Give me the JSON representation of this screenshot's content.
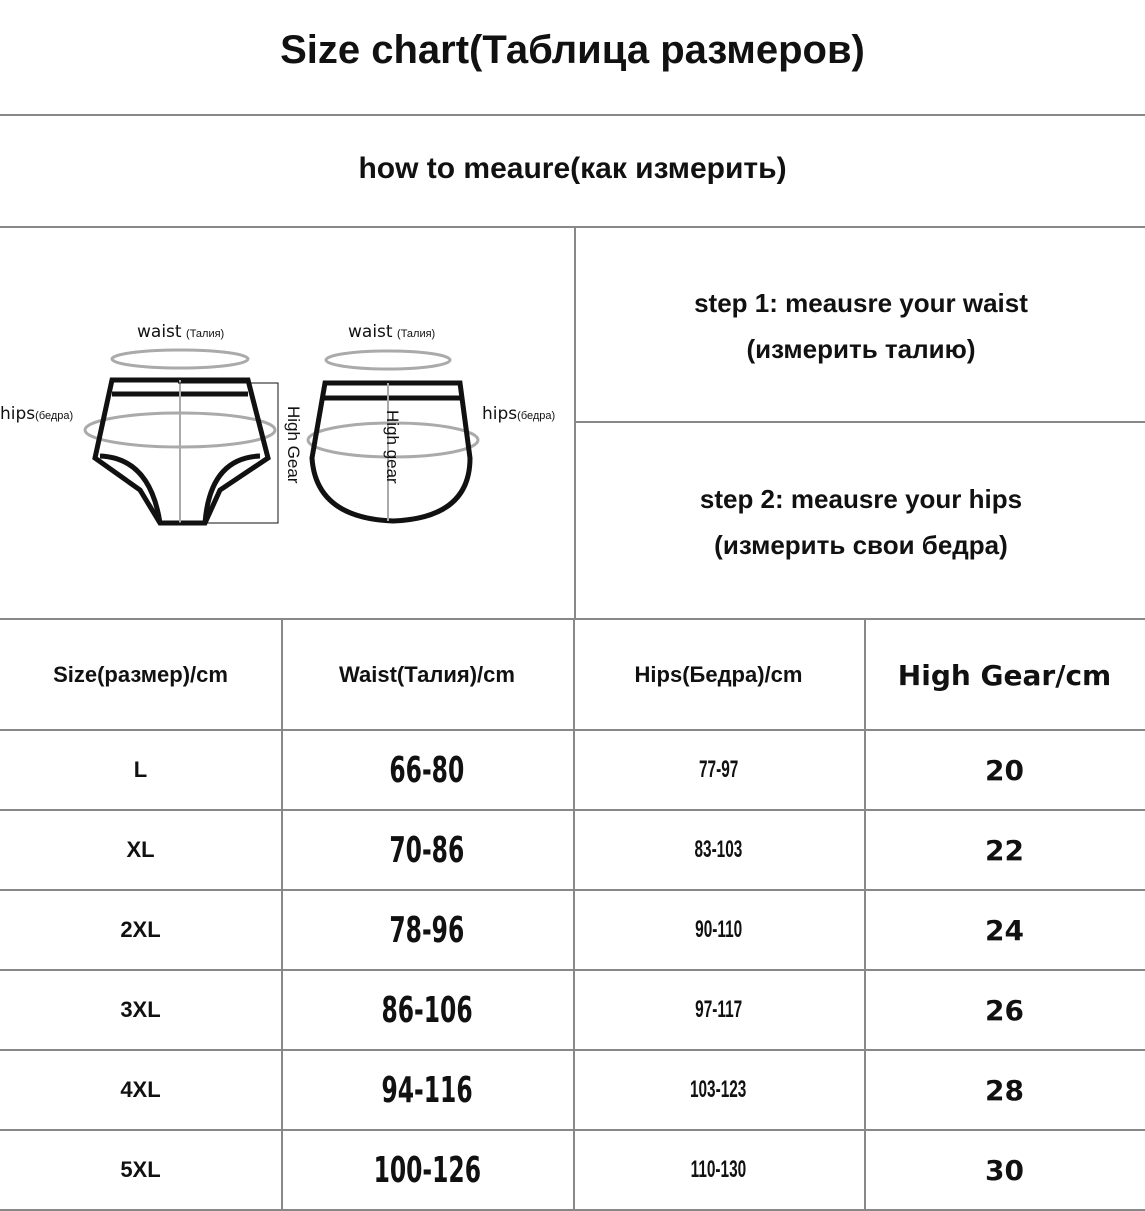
{
  "title": "Size chart(Таблица размеров)",
  "subtitle": "how to meaure(как измерить)",
  "diagram": {
    "waist_label": "waist",
    "waist_ru": "(Талия)",
    "hips_label": "hips",
    "hips_ru": "(бедра)",
    "high_gear_1": "High Gear",
    "high_gear_2": "High gear"
  },
  "steps": [
    {
      "line1": "step 1: meausre your waist",
      "line2": "(измерить талию)"
    },
    {
      "line1": "step 2: meausre your hips",
      "line2": "(измерить свои бедра)"
    }
  ],
  "table": {
    "headers": [
      "Size(размер)/cm",
      "Waist(Талия)/cm",
      "Hips(Бедра)/cm",
      "High Gear/cm"
    ],
    "rows": [
      [
        "L",
        "66-80",
        "77-97",
        "20"
      ],
      [
        "XL",
        "70-86",
        "83-103",
        "22"
      ],
      [
        "2XL",
        "78-96",
        "90-110",
        "24"
      ],
      [
        "3XL",
        "86-106",
        "97-117",
        "26"
      ],
      [
        "4XL",
        "94-116",
        "103-123",
        "28"
      ],
      [
        "5XL",
        "100-126",
        "110-130",
        "30"
      ]
    ]
  }
}
